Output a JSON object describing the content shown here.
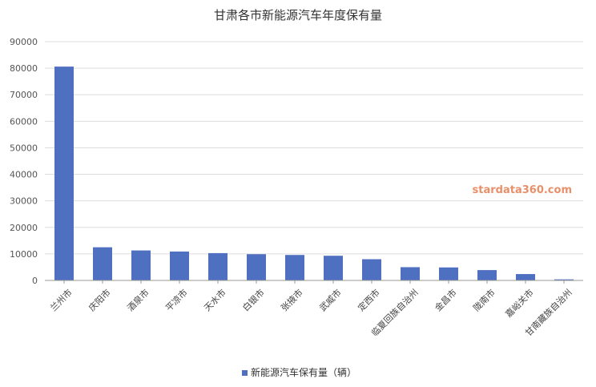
{
  "chart_data": {
    "type": "bar",
    "title": "甘肃各市新能源汽车年度保有量",
    "categories": [
      "兰州市",
      "庆阳市",
      "酒泉市",
      "平凉市",
      "天水市",
      "白银市",
      "张掖市",
      "武威市",
      "定西市",
      "临夏回族自治州",
      "金昌市",
      "陇南市",
      "嘉峪关市",
      "甘南藏族自治州"
    ],
    "series": [
      {
        "name": "新能源汽车保有量（辆）",
        "color": "#4f6fc0",
        "values": [
          80600,
          12500,
          11300,
          10900,
          10300,
          9900,
          9600,
          9300,
          8000,
          5000,
          4900,
          3900,
          2400,
          400
        ]
      }
    ],
    "ylim": [
      0,
      90000
    ],
    "yticks": [
      0,
      10000,
      20000,
      30000,
      40000,
      50000,
      60000,
      70000,
      80000,
      90000
    ],
    "xlabel": "",
    "ylabel": "",
    "grid": true,
    "legend_position": "bottom-center"
  },
  "watermark": "stardata360.com"
}
